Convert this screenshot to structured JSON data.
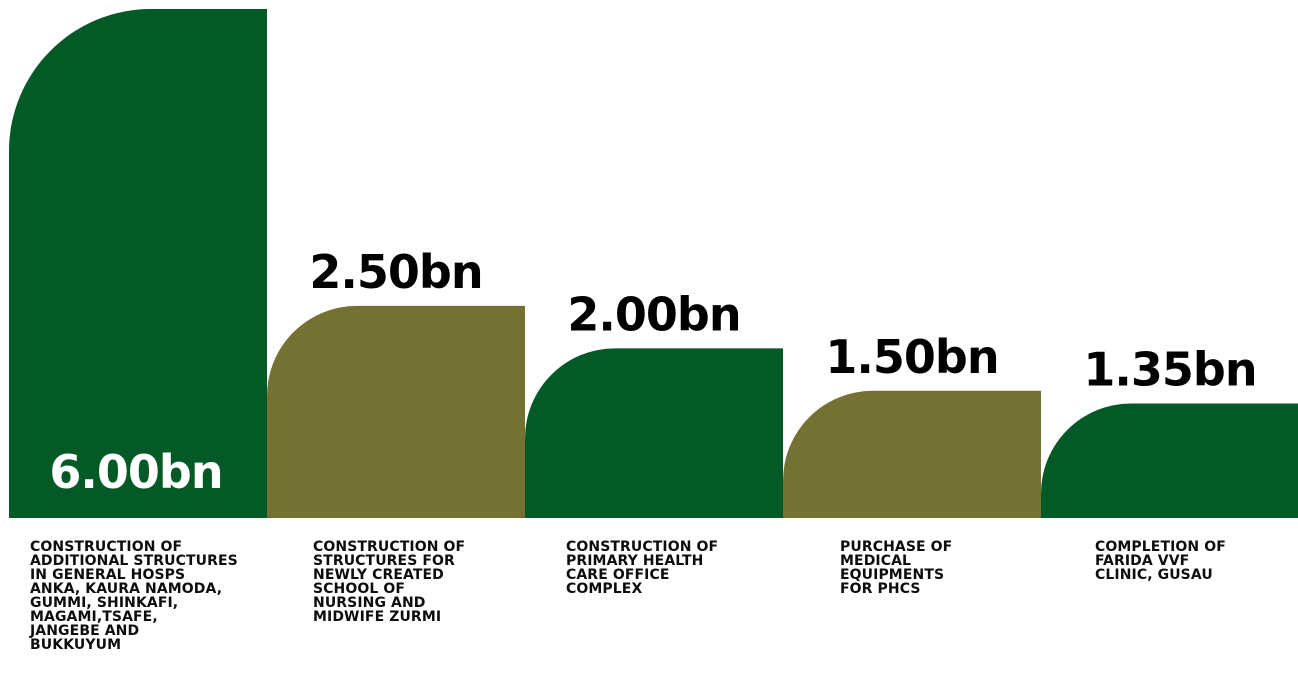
{
  "chart_data": {
    "type": "bar",
    "categories": [
      "CONSTRUCTION OF ADDITIONAL STRUCTURES IN GENERAL HOSPS ANKA, KAURA NAMODA, GUMMI, SHINKAFI, MAGAMI,TSAFE, JANGEBE AND BUKKUYUM",
      "CONSTRUCTION OF STRUCTURES FOR NEWLY CREATED SCHOOL OF NURSING AND MIDWIFE ZURMI",
      "CONSTRUCTION OF PRIMARY HEALTH CARE OFFICE COMPLEX",
      "PURCHASE OF MEDICAL EQUIPMENTS FOR PHCS",
      "COMPLETION OF FARIDA VVF CLINIC, GUSAU"
    ],
    "category_lines": [
      [
        "CONSTRUCTION OF",
        "ADDITIONAL STRUCTURES",
        "IN GENERAL HOSPS",
        "ANKA, KAURA NAMODA,",
        "GUMMI, SHINKAFI,",
        "MAGAMI,TSAFE,",
        "JANGEBE AND",
        "BUKKUYUM"
      ],
      [
        "CONSTRUCTION OF",
        "STRUCTURES FOR",
        "NEWLY CREATED",
        "SCHOOL OF",
        "NURSING AND",
        "MIDWIFE ZURMI"
      ],
      [
        "CONSTRUCTION OF",
        "PRIMARY HEALTH",
        "CARE OFFICE",
        "COMPLEX"
      ],
      [
        "PURCHASE OF",
        "MEDICAL",
        "EQUIPMENTS",
        "FOR PHCS"
      ],
      [
        "COMPLETION OF",
        "FARIDA VVF",
        "CLINIC, GUSAU"
      ]
    ],
    "values": [
      6.0,
      2.5,
      2.0,
      1.5,
      1.35
    ],
    "value_labels": [
      "6.00bn",
      "2.50bn",
      "2.00bn",
      "1.50bn",
      "1.35bn"
    ],
    "unit": "bn",
    "colors": [
      "#045a27",
      "#747232",
      "#045a27",
      "#747232",
      "#045a27"
    ],
    "value_label_colors": [
      "#ffffff",
      "#000000",
      "#000000",
      "#000000",
      "#000000"
    ],
    "ylim": [
      0,
      6.0
    ],
    "grid": false,
    "legend": "none",
    "title": "",
    "xlabel": "",
    "ylabel": ""
  }
}
